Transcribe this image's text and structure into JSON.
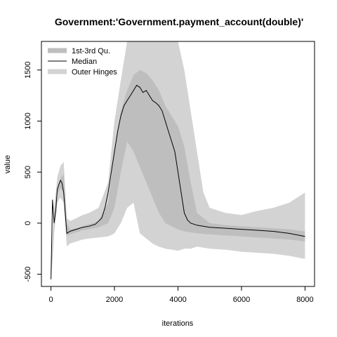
{
  "chart_data": {
    "type": "area",
    "title": "Government:'Government.payment_account(double)'",
    "xlabel": "iterations",
    "ylabel": "value",
    "xlim": [
      -300,
      8300
    ],
    "ylim": [
      -620,
      1780
    ],
    "xticks": [
      0,
      2000,
      4000,
      6000,
      8000
    ],
    "yticks": [
      -500,
      0,
      500,
      1000,
      1500
    ],
    "xtick_labels": [
      "0",
      "2000",
      "4000",
      "6000",
      "8000"
    ],
    "ytick_labels": [
      "-500",
      "0",
      "500",
      "1000",
      "1500"
    ],
    "grid": false,
    "legend": {
      "placement": "top-left",
      "entries": [
        {
          "label": "1st-3rd Qu.",
          "color": "#bebebe",
          "style": "band"
        },
        {
          "label": "Median",
          "color": "#000000",
          "style": "line"
        },
        {
          "label": "Outer Hinges",
          "color": "#d3d3d3",
          "style": "band"
        }
      ]
    },
    "colors": {
      "outer": "#d3d3d3",
      "inner": "#bebebe",
      "median": "#000000"
    },
    "series": [
      {
        "name": "Median",
        "x": [
          0,
          50,
          100,
          150,
          200,
          250,
          300,
          350,
          400,
          450,
          500,
          550,
          600,
          700,
          800,
          900,
          1000,
          1200,
          1400,
          1600,
          1700,
          1800,
          1900,
          2000,
          2100,
          2200,
          2300,
          2400,
          2500,
          2600,
          2700,
          2800,
          2900,
          3000,
          3100,
          3200,
          3300,
          3400,
          3500,
          3600,
          3700,
          3800,
          3900,
          4000,
          4100,
          4200,
          4300,
          4400,
          4600,
          4800,
          5000,
          5500,
          6000,
          6500,
          7000,
          7500,
          8000
        ],
        "y": [
          -550,
          230,
          0,
          120,
          330,
          380,
          420,
          390,
          300,
          100,
          -100,
          -90,
          -80,
          -70,
          -60,
          -50,
          -40,
          -30,
          -10,
          50,
          150,
          300,
          500,
          700,
          900,
          1050,
          1150,
          1200,
          1250,
          1300,
          1350,
          1330,
          1280,
          1300,
          1250,
          1200,
          1180,
          1150,
          1100,
          1000,
          900,
          800,
          700,
          500,
          300,
          100,
          30,
          0,
          -20,
          -30,
          -40,
          -50,
          -60,
          -70,
          -80,
          -100,
          -130
        ]
      },
      {
        "name": "1st-3rd Qu.",
        "x": [
          0,
          100,
          200,
          300,
          400,
          500,
          600,
          800,
          1000,
          1200,
          1500,
          1800,
          2000,
          2200,
          2400,
          2600,
          2800,
          3000,
          3200,
          3400,
          3600,
          3800,
          4000,
          4200,
          4400,
          4600,
          5000,
          5500,
          6000,
          6500,
          7000,
          7500,
          8000
        ],
        "upper": [
          -500,
          60,
          330,
          440,
          480,
          0,
          -60,
          -50,
          -30,
          -10,
          20,
          200,
          700,
          1100,
          1300,
          1450,
          1500,
          1470,
          1400,
          1300,
          1150,
          1050,
          950,
          750,
          400,
          100,
          0,
          -20,
          -30,
          -40,
          -50,
          -60,
          -80
        ],
        "lower": [
          -560,
          -20,
          280,
          340,
          300,
          -120,
          -110,
          -90,
          -70,
          -60,
          -40,
          0,
          150,
          500,
          800,
          700,
          550,
          400,
          250,
          100,
          0,
          -30,
          -60,
          -80,
          -90,
          -100,
          -110,
          -120,
          -130,
          -140,
          -150,
          -160,
          -180
        ]
      },
      {
        "name": "Outer Hinges",
        "x": [
          0,
          100,
          200,
          300,
          400,
          500,
          600,
          800,
          1000,
          1200,
          1500,
          1800,
          2000,
          2200,
          2400,
          2600,
          2800,
          3000,
          3200,
          3400,
          3600,
          3800,
          4000,
          4200,
          4400,
          4600,
          4800,
          5000,
          5500,
          6000,
          6500,
          7000,
          7500,
          8000
        ],
        "upper": [
          -450,
          150,
          450,
          560,
          600,
          50,
          20,
          50,
          80,
          100,
          150,
          400,
          1000,
          1400,
          1780,
          1780,
          1780,
          1780,
          1780,
          1780,
          1780,
          1780,
          1780,
          1500,
          1100,
          700,
          300,
          150,
          100,
          80,
          120,
          150,
          200,
          300
        ],
        "lower": [
          -600,
          -100,
          200,
          250,
          200,
          -230,
          -200,
          -180,
          -160,
          -150,
          -140,
          -130,
          -100,
          0,
          150,
          200,
          -100,
          -150,
          -200,
          -230,
          -250,
          -260,
          -270,
          -250,
          -250,
          -230,
          -240,
          -250,
          -260,
          -280,
          -290,
          -300,
          -320,
          -350
        ]
      }
    ]
  }
}
